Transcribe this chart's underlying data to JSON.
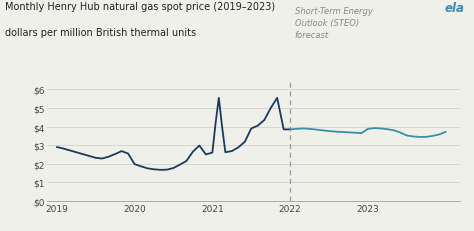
{
  "title_line1": "Monthly Henry Hub natural gas spot price (2019–2023)",
  "title_line2": "dollars per million British thermal units",
  "forecast_label": "Short-Term Energy\nOutlook (STEO)\nforecast",
  "line_color_actual": "#1b3a5c",
  "line_color_forecast": "#3a8fa8",
  "dashed_line_color": "#999999",
  "background_color": "#f0f0eb",
  "ylim": [
    0,
    6.5
  ],
  "yticks": [
    0,
    1,
    2,
    3,
    4,
    5,
    6
  ],
  "ytick_labels": [
    "$0",
    "$1",
    "$2",
    "$3",
    "$4",
    "$5",
    "$6"
  ],
  "xtick_positions": [
    2019,
    2020,
    2021,
    2022,
    2023
  ],
  "xtick_labels": [
    "2019",
    "2020",
    "2021",
    "2022",
    "2023"
  ],
  "actual_x": [
    2019.0,
    2019.083,
    2019.167,
    2019.25,
    2019.333,
    2019.417,
    2019.5,
    2019.583,
    2019.667,
    2019.75,
    2019.833,
    2019.917,
    2020.0,
    2020.083,
    2020.167,
    2020.25,
    2020.333,
    2020.417,
    2020.5,
    2020.583,
    2020.667,
    2020.75,
    2020.833,
    2020.917,
    2021.0,
    2021.042,
    2021.083,
    2021.125,
    2021.167,
    2021.25,
    2021.333,
    2021.417,
    2021.5,
    2021.583,
    2021.667,
    2021.75,
    2021.833,
    2021.917,
    2022.0
  ],
  "actual_y": [
    2.9,
    2.82,
    2.72,
    2.62,
    2.52,
    2.42,
    2.32,
    2.28,
    2.38,
    2.52,
    2.68,
    2.55,
    1.98,
    1.86,
    1.75,
    1.7,
    1.67,
    1.68,
    1.77,
    1.95,
    2.15,
    2.65,
    2.98,
    2.5,
    2.6,
    4.2,
    5.55,
    4.0,
    2.62,
    2.68,
    2.88,
    3.18,
    3.9,
    4.05,
    4.35,
    5.0,
    5.55,
    3.85,
    3.85
  ],
  "forecast_x": [
    2022.0,
    2022.083,
    2022.167,
    2022.25,
    2022.333,
    2022.417,
    2022.5,
    2022.583,
    2022.667,
    2022.75,
    2022.833,
    2022.917,
    2023.0,
    2023.083,
    2023.167,
    2023.25,
    2023.333,
    2023.417,
    2023.5,
    2023.583,
    2023.667,
    2023.75,
    2023.833,
    2023.917,
    2024.0
  ],
  "forecast_y": [
    3.85,
    3.88,
    3.9,
    3.88,
    3.84,
    3.8,
    3.76,
    3.73,
    3.71,
    3.69,
    3.67,
    3.65,
    3.88,
    3.92,
    3.9,
    3.86,
    3.8,
    3.68,
    3.52,
    3.47,
    3.44,
    3.45,
    3.5,
    3.58,
    3.72
  ],
  "vline_x": 2022.0,
  "xlim": [
    2018.88,
    2024.18
  ],
  "figsize": [
    4.74,
    2.32
  ],
  "dpi": 100
}
